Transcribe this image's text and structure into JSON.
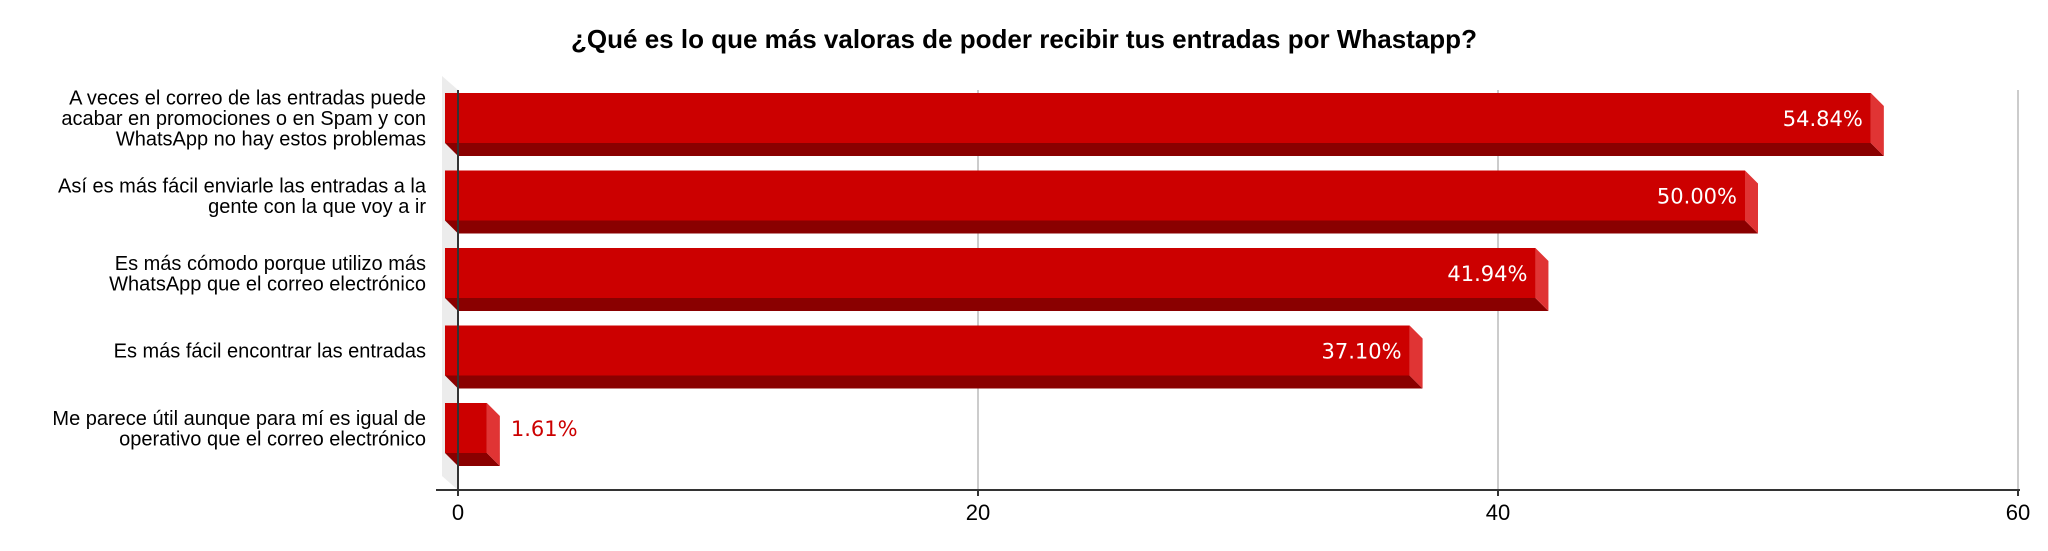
{
  "chart_data": {
    "type": "bar",
    "orientation": "horizontal",
    "style": "3d",
    "title": "¿Qué es lo que más valoras de poder recibir tus entradas por Whastapp?",
    "xlabel": "",
    "ylabel": "",
    "categories": [
      [
        "A veces el correo de las entradas puede",
        "acabar en promociones o en Spam y con",
        "WhatsApp no hay estos problemas"
      ],
      [
        "Así es más fácil enviarle las entradas a la",
        "gente con la que voy a ir"
      ],
      [
        "Es más cómodo porque utilizo más",
        "WhatsApp que el correo electrónico"
      ],
      [
        "Es más fácil encontrar las entradas"
      ],
      [
        "Me parece útil aunque para mí es igual de",
        "operativo que el correo electrónico"
      ]
    ],
    "values": [
      54.84,
      50.0,
      41.94,
      37.1,
      1.61
    ],
    "data_labels": [
      "54.84%",
      "50.00%",
      "41.94%",
      "37.10%",
      "1.61%"
    ],
    "xlim": [
      0,
      60
    ],
    "x_ticks": [
      0,
      20,
      40,
      60
    ],
    "x_tick_labels": [
      "0",
      "20",
      "40",
      "60"
    ],
    "grid": true,
    "legend": "none",
    "colors": {
      "bar_front": "#cc0000",
      "bar_side": "#e03434",
      "bar_bottom": "#8a0000",
      "inside_label": "#ffffff",
      "outside_label": "#cc0000",
      "grid": "#cccccc",
      "wall": "#ececec"
    }
  }
}
